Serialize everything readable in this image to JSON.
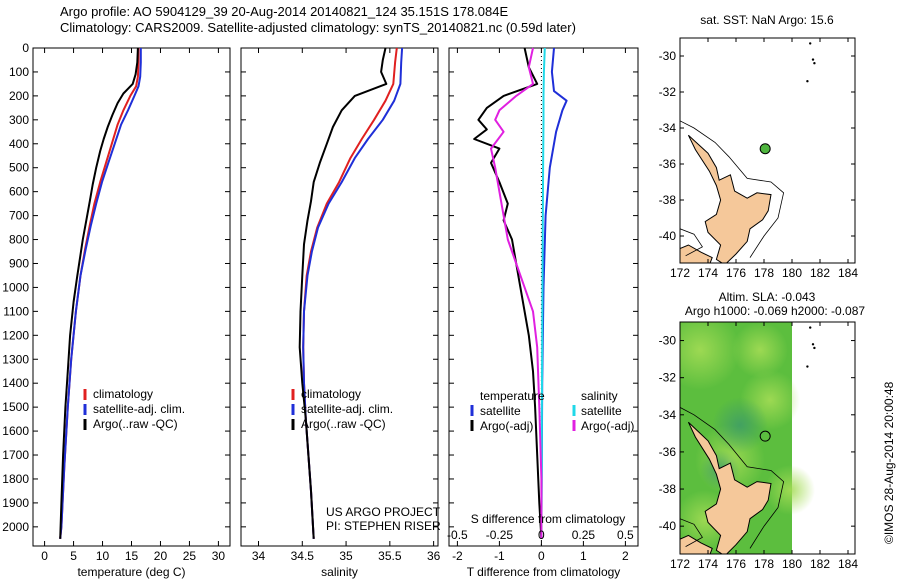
{
  "header": {
    "line1": "Argo profile: AO 5904129_39 20-Aug-2014 20140821_124 35.151S 178.084E",
    "line2": "Climatology: CARS2009. Satellite-adjusted climatology: synTS_20140821.nc (0.59d later)"
  },
  "colors": {
    "argo": "#000000",
    "clim": "#e02020",
    "sat": "#1f2fd8",
    "cyan": "#20d8e8",
    "magenta": "#e020e0",
    "land": "#f5c89a",
    "seaWarm": "#4fb53f"
  },
  "chart_data": [
    {
      "type": "line",
      "xlabel": "temperature (deg C)",
      "xticks": [
        "0",
        "5",
        "10",
        "15",
        "20",
        "25",
        "30"
      ],
      "xlim": [
        -2,
        32
      ],
      "ylim": [
        0,
        2080
      ],
      "yticks": [
        "0",
        "100",
        "200",
        "300",
        "400",
        "500",
        "600",
        "700",
        "800",
        "900",
        "1000",
        "1100",
        "1200",
        "1300",
        "1400",
        "1500",
        "1600",
        "1700",
        "1800",
        "1900",
        "2000"
      ],
      "legend": [
        "climatology",
        "satellite-adj. clim.",
        "Argo(..raw -QC)"
      ],
      "series": [
        {
          "key": "clim",
          "color": "#e02020",
          "points": [
            [
              16.2,
              0
            ],
            [
              16.2,
              60
            ],
            [
              16.1,
              120
            ],
            [
              15.8,
              160
            ],
            [
              14.8,
              200
            ],
            [
              13.6,
              260
            ],
            [
              12.6,
              320
            ],
            [
              11.6,
              400
            ],
            [
              10.6,
              480
            ],
            [
              9.6,
              560
            ],
            [
              8.6,
              650
            ],
            [
              7.8,
              740
            ],
            [
              7.0,
              840
            ],
            [
              6.2,
              950
            ],
            [
              5.4,
              1100
            ],
            [
              4.6,
              1300
            ],
            [
              4.0,
              1500
            ],
            [
              3.4,
              1750
            ],
            [
              2.9,
              2000
            ],
            [
              2.7,
              2050
            ]
          ]
        },
        {
          "key": "sat",
          "color": "#1f2fd8",
          "points": [
            [
              16.6,
              0
            ],
            [
              16.6,
              60
            ],
            [
              16.5,
              120
            ],
            [
              16.2,
              160
            ],
            [
              15.5,
              200
            ],
            [
              14.4,
              260
            ],
            [
              13.2,
              320
            ],
            [
              12.1,
              400
            ],
            [
              11.0,
              480
            ],
            [
              9.9,
              560
            ],
            [
              8.9,
              650
            ],
            [
              8.0,
              740
            ],
            [
              7.1,
              840
            ],
            [
              6.2,
              950
            ],
            [
              5.4,
              1100
            ],
            [
              4.6,
              1300
            ],
            [
              4.0,
              1500
            ],
            [
              3.4,
              1750
            ],
            [
              2.9,
              2000
            ],
            [
              2.7,
              2050
            ]
          ]
        },
        {
          "key": "argo",
          "color": "#000000",
          "points": [
            [
              16.1,
              0
            ],
            [
              16.0,
              60
            ],
            [
              15.7,
              110
            ],
            [
              15.2,
              150
            ],
            [
              13.6,
              190
            ],
            [
              12.6,
              230
            ],
            [
              11.7,
              280
            ],
            [
              10.9,
              330
            ],
            [
              10.2,
              380
            ],
            [
              9.6,
              430
            ],
            [
              8.9,
              500
            ],
            [
              8.3,
              570
            ],
            [
              7.8,
              640
            ],
            [
              7.2,
              720
            ],
            [
              6.6,
              800
            ],
            [
              6.1,
              880
            ],
            [
              5.6,
              960
            ],
            [
              5.0,
              1060
            ],
            [
              4.4,
              1200
            ],
            [
              4.0,
              1350
            ],
            [
              3.6,
              1500
            ],
            [
              3.2,
              1700
            ],
            [
              2.9,
              1900
            ],
            [
              2.7,
              2050
            ]
          ]
        }
      ]
    },
    {
      "type": "line",
      "xlabel": "salinity",
      "xticks": [
        "34",
        "34.5",
        "35",
        "35.5",
        "36"
      ],
      "xlim": [
        33.8,
        36.05
      ],
      "ylim": [
        0,
        2080
      ],
      "legend": [
        "climatology",
        "satellite-adj. clim.",
        "Argo(..raw -QC)"
      ],
      "annotation": [
        "US ARGO PROJECT",
        "PI: STEPHEN RISER"
      ],
      "series": [
        {
          "key": "clim",
          "color": "#e02020",
          "points": [
            [
              35.58,
              0
            ],
            [
              35.56,
              60
            ],
            [
              35.54,
              150
            ],
            [
              35.45,
              220
            ],
            [
              35.32,
              300
            ],
            [
              35.18,
              380
            ],
            [
              35.05,
              460
            ],
            [
              34.92,
              560
            ],
            [
              34.78,
              650
            ],
            [
              34.67,
              750
            ],
            [
              34.6,
              850
            ],
            [
              34.55,
              950
            ],
            [
              34.52,
              1100
            ],
            [
              34.51,
              1250
            ],
            [
              34.52,
              1400
            ],
            [
              34.54,
              1550
            ],
            [
              34.57,
              1700
            ],
            [
              34.6,
              1850
            ],
            [
              34.63,
              2050
            ]
          ]
        },
        {
          "key": "sat",
          "color": "#1f2fd8",
          "points": [
            [
              35.64,
              0
            ],
            [
              35.63,
              60
            ],
            [
              35.62,
              150
            ],
            [
              35.55,
              220
            ],
            [
              35.42,
              300
            ],
            [
              35.25,
              380
            ],
            [
              35.1,
              460
            ],
            [
              34.95,
              560
            ],
            [
              34.8,
              650
            ],
            [
              34.68,
              750
            ],
            [
              34.61,
              850
            ],
            [
              34.56,
              950
            ],
            [
              34.52,
              1100
            ],
            [
              34.51,
              1250
            ],
            [
              34.52,
              1400
            ],
            [
              34.54,
              1550
            ],
            [
              34.57,
              1700
            ],
            [
              34.6,
              1850
            ],
            [
              34.63,
              2050
            ]
          ]
        },
        {
          "key": "argo",
          "color": "#000000",
          "points": [
            [
              35.45,
              0
            ],
            [
              35.42,
              50
            ],
            [
              35.4,
              100
            ],
            [
              35.46,
              150
            ],
            [
              35.1,
              200
            ],
            [
              34.95,
              260
            ],
            [
              34.85,
              330
            ],
            [
              34.78,
              400
            ],
            [
              34.7,
              480
            ],
            [
              34.63,
              560
            ],
            [
              34.6,
              640
            ],
            [
              34.56,
              720
            ],
            [
              34.52,
              820
            ],
            [
              34.5,
              950
            ],
            [
              34.48,
              1100
            ],
            [
              34.47,
              1250
            ],
            [
              34.5,
              1400
            ],
            [
              34.54,
              1550
            ],
            [
              34.57,
              1700
            ],
            [
              34.6,
              1850
            ],
            [
              34.63,
              2050
            ]
          ]
        }
      ]
    },
    {
      "type": "line",
      "xlabel": "T difference from climatology",
      "xlabel2": "S difference from climatology",
      "xticks": [
        "-2",
        "-1",
        "0",
        "1",
        "2"
      ],
      "xticks2": [
        "-0.5",
        "-0.25",
        "0",
        "0.25",
        "0.5"
      ],
      "xlim": [
        -2.2,
        2.3
      ],
      "ylim": [
        0,
        2080
      ],
      "legend": {
        "temperature": [
          "temperature",
          "satellite",
          "Argo(-adj)"
        ],
        "salinity": [
          "salinity",
          "satellite",
          "Argo(-adj)"
        ]
      },
      "series": [
        {
          "key": "t_sat",
          "color": "#1f2fd8",
          "points": [
            [
              0.3,
              0
            ],
            [
              0.25,
              100
            ],
            [
              0.3,
              180
            ],
            [
              0.6,
              220
            ],
            [
              0.5,
              260
            ],
            [
              0.35,
              350
            ],
            [
              0.2,
              500
            ],
            [
              0.1,
              700
            ],
            [
              0.05,
              1000
            ],
            [
              0.02,
              1400
            ],
            [
              0.0,
              2050
            ]
          ]
        },
        {
          "key": "s_sat",
          "color": "#20d8e8",
          "points": [
            [
              0.08,
              0
            ],
            [
              0.06,
              100
            ],
            [
              0.05,
              200
            ],
            [
              0.05,
              300
            ],
            [
              0.04,
              500
            ],
            [
              0.03,
              800
            ],
            [
              0.02,
              1200
            ],
            [
              0.01,
              1600
            ],
            [
              0.0,
              2050
            ]
          ]
        },
        {
          "key": "t_argo",
          "color": "#000000",
          "points": [
            [
              -0.4,
              0
            ],
            [
              -0.3,
              80
            ],
            [
              -0.1,
              150
            ],
            [
              -0.9,
              200
            ],
            [
              -1.3,
              250
            ],
            [
              -1.5,
              300
            ],
            [
              -1.3,
              340
            ],
            [
              -1.6,
              380
            ],
            [
              -1.0,
              420
            ],
            [
              -1.2,
              480
            ],
            [
              -1.0,
              560
            ],
            [
              -0.8,
              650
            ],
            [
              -0.9,
              720
            ],
            [
              -0.7,
              800
            ],
            [
              -0.6,
              900
            ],
            [
              -0.5,
              1000
            ],
            [
              -0.4,
              1100
            ],
            [
              -0.3,
              1200
            ],
            [
              -0.2,
              1350
            ],
            [
              -0.15,
              1500
            ],
            [
              -0.1,
              1700
            ],
            [
              -0.05,
              1900
            ],
            [
              0.0,
              2050
            ]
          ]
        },
        {
          "key": "s_argo",
          "color": "#e020e0",
          "points": [
            [
              -0.2,
              0
            ],
            [
              -0.3,
              80
            ],
            [
              -0.2,
              150
            ],
            [
              -0.6,
              200
            ],
            [
              -1.0,
              260
            ],
            [
              -1.1,
              300
            ],
            [
              -0.9,
              350
            ],
            [
              -1.2,
              420
            ],
            [
              -1.1,
              500
            ],
            [
              -1.0,
              600
            ],
            [
              -0.9,
              700
            ],
            [
              -0.8,
              800
            ],
            [
              -0.6,
              900
            ],
            [
              -0.4,
              1000
            ],
            [
              -0.2,
              1100
            ],
            [
              -0.1,
              1250
            ],
            [
              -0.05,
              1500
            ],
            [
              0.0,
              1800
            ],
            [
              0.0,
              2050
            ]
          ]
        }
      ]
    },
    {
      "type": "map",
      "title": "sat. SST: NaN Argo: 15.6",
      "xticks": [
        "172",
        "174",
        "176",
        "178",
        "180",
        "182",
        "184"
      ],
      "yticks": [
        "-30",
        "-32",
        "-34",
        "-36",
        "-38",
        "-40"
      ],
      "xlim": [
        172,
        184.5
      ],
      "ylim": [
        -41.5,
        -29
      ],
      "marker": {
        "lon": 178.084,
        "lat": -35.151,
        "color": "#4fb53f"
      }
    },
    {
      "type": "map",
      "title": "Altim. SLA: -0.043",
      "subtitle": "Argo h1000: -0.069 h2000: -0.087",
      "xticks": [
        "172",
        "174",
        "176",
        "178",
        "180",
        "182",
        "184"
      ],
      "yticks": [
        "-30",
        "-32",
        "-34",
        "-36",
        "-38",
        "-40"
      ],
      "xlim": [
        172,
        184.5
      ],
      "ylim": [
        -41.5,
        -29
      ],
      "side_label": "©IMOS 28-Aug-2014 20:00:48",
      "marker": {
        "lon": 178.084,
        "lat": -35.151,
        "color": "none"
      }
    }
  ]
}
